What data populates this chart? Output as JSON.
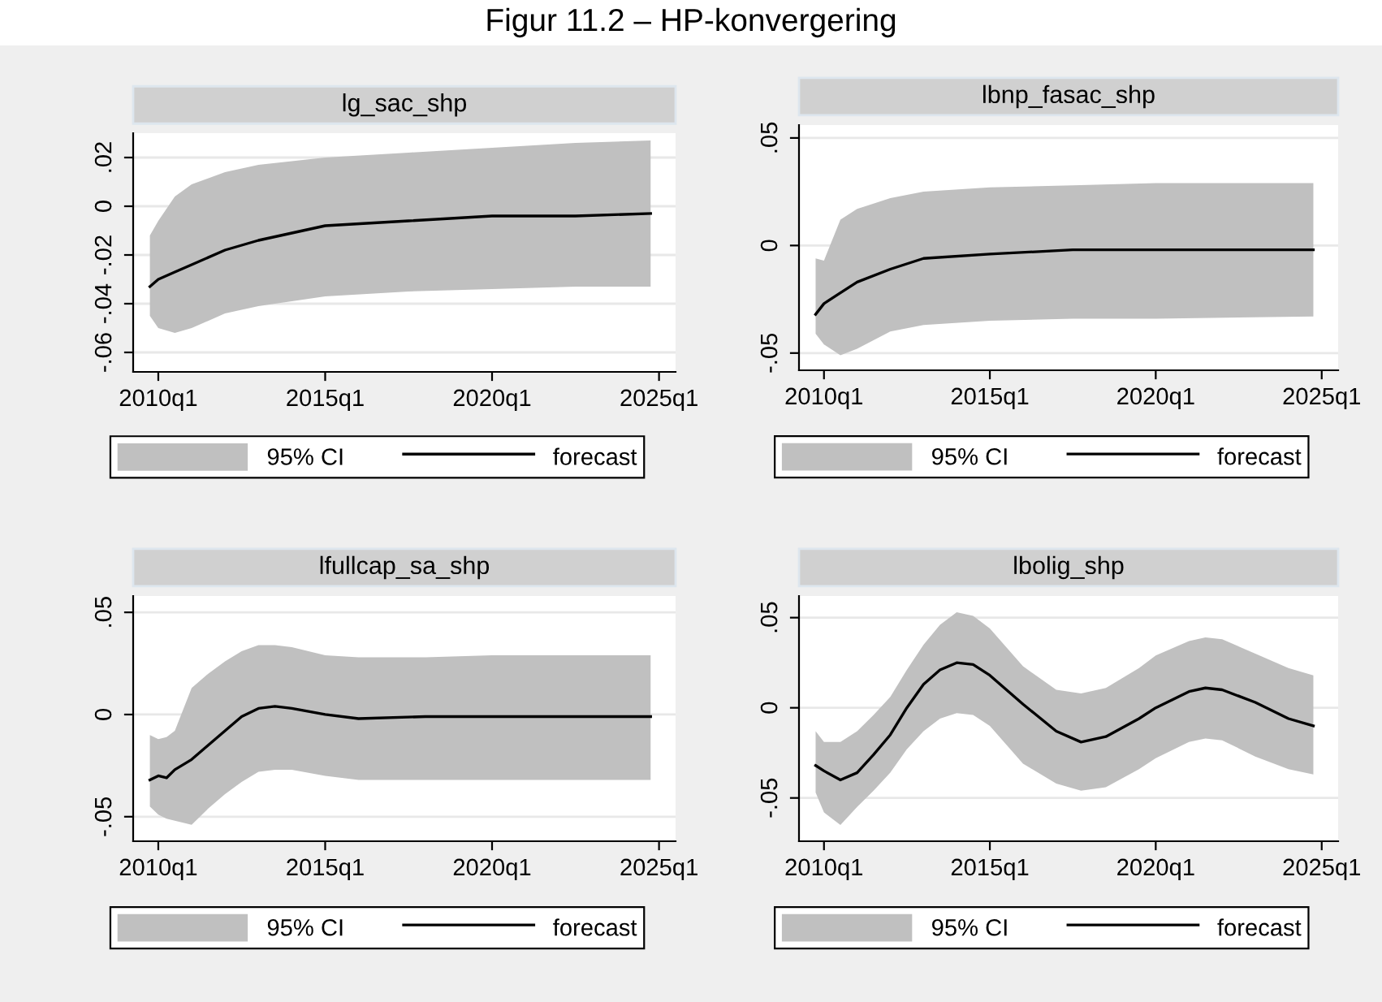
{
  "chart_data": [
    {
      "type": "line",
      "title": "lg_sac_shp",
      "annotations": [
        "Figur 11.2 – HP-konvergering",
        "95% CI"
      ],
      "grid": "y",
      "legend": "bottom",
      "x": [
        "2009-10",
        "2010-01",
        "2010-07",
        "2011-01",
        "2012-01",
        "2013-01",
        "2015-01",
        "2017-07",
        "2020-01",
        "2022-07",
        "2024-10"
      ],
      "series": [
        {
          "name": "forecast",
          "color": "#000000",
          "values": [
            -0.033,
            -0.03,
            -0.027,
            -0.024,
            -0.018,
            -0.014,
            -0.008,
            -0.006,
            -0.004,
            -0.004,
            -0.003
          ],
          "lower": [
            -0.045,
            -0.05,
            -0.052,
            -0.05,
            -0.044,
            -0.041,
            -0.037,
            -0.035,
            -0.034,
            -0.033,
            -0.033
          ],
          "upper": [
            -0.012,
            -0.006,
            0.004,
            0.009,
            0.014,
            0.017,
            0.02,
            0.022,
            0.024,
            0.026,
            0.027
          ]
        }
      ],
      "xlim": [
        "2009-04",
        "2025-07"
      ],
      "xticks": [
        {
          "value": "2010-01",
          "label": "2010q1"
        },
        {
          "value": "2015-01",
          "label": "2015q1"
        },
        {
          "value": "2020-01",
          "label": "2020q1"
        },
        {
          "value": "2025-01",
          "label": "2025q1"
        }
      ],
      "ylim": [
        -0.068,
        0.03
      ],
      "yticks": [
        {
          "value": -0.06,
          "label": "-.06"
        },
        {
          "value": -0.04,
          "label": "-.04"
        },
        {
          "value": -0.02,
          "label": "-.02"
        },
        {
          "value": 0,
          "label": "0"
        },
        {
          "value": 0.02,
          "label": ".02"
        }
      ]
    },
    {
      "type": "line",
      "title": "lbnp_fasac_shp",
      "annotations": [
        "95% CI"
      ],
      "grid": "y",
      "legend": "bottom",
      "x": [
        "2009-10",
        "2010-01",
        "2010-07",
        "2011-01",
        "2012-01",
        "2013-01",
        "2015-01",
        "2017-07",
        "2020-01",
        "2024-10"
      ],
      "series": [
        {
          "name": "forecast",
          "color": "#000000",
          "values": [
            -0.032,
            -0.027,
            -0.022,
            -0.017,
            -0.011,
            -0.006,
            -0.004,
            -0.002,
            -0.002,
            -0.002
          ],
          "lower": [
            -0.041,
            -0.046,
            -0.051,
            -0.048,
            -0.04,
            -0.037,
            -0.035,
            -0.034,
            -0.034,
            -0.033
          ],
          "upper": [
            -0.006,
            -0.007,
            0.012,
            0.017,
            0.022,
            0.025,
            0.027,
            0.028,
            0.029,
            0.029
          ]
        }
      ],
      "xlim": [
        "2009-04",
        "2025-07"
      ],
      "xticks": [
        {
          "value": "2010-01",
          "label": "2010q1"
        },
        {
          "value": "2015-01",
          "label": "2015q1"
        },
        {
          "value": "2020-01",
          "label": "2020q1"
        },
        {
          "value": "2025-01",
          "label": "2025q1"
        }
      ],
      "ylim": [
        -0.058,
        0.056
      ],
      "yticks": [
        {
          "value": -0.05,
          "label": "-.05"
        },
        {
          "value": 0,
          "label": "0"
        },
        {
          "value": 0.05,
          "label": ".05"
        }
      ]
    },
    {
      "type": "line",
      "title": "lfullcap_sa_shp",
      "annotations": [
        "95% CI"
      ],
      "grid": "y",
      "legend": "bottom",
      "x": [
        "2009-10",
        "2010-01",
        "2010-04",
        "2010-07",
        "2011-01",
        "2011-07",
        "2012-01",
        "2012-07",
        "2013-01",
        "2013-07",
        "2014-01",
        "2015-01",
        "2016-01",
        "2018-01",
        "2020-01",
        "2022-01",
        "2024-10"
      ],
      "series": [
        {
          "name": "forecast",
          "color": "#000000",
          "values": [
            -0.032,
            -0.03,
            -0.031,
            -0.027,
            -0.022,
            -0.015,
            -0.008,
            -0.001,
            0.003,
            0.004,
            0.003,
            0,
            -0.002,
            -0.001,
            -0.001,
            -0.001,
            -0.001
          ],
          "lower": [
            -0.045,
            -0.049,
            -0.051,
            -0.052,
            -0.054,
            -0.046,
            -0.039,
            -0.033,
            -0.028,
            -0.027,
            -0.027,
            -0.03,
            -0.032,
            -0.032,
            -0.032,
            -0.032,
            -0.032
          ],
          "upper": [
            -0.01,
            -0.012,
            -0.011,
            -0.008,
            0.013,
            0.02,
            0.026,
            0.031,
            0.034,
            0.034,
            0.033,
            0.029,
            0.028,
            0.028,
            0.029,
            0.029,
            0.029
          ]
        }
      ],
      "xlim": [
        "2009-04",
        "2025-07"
      ],
      "xticks": [
        {
          "value": "2010-01",
          "label": "2010q1"
        },
        {
          "value": "2015-01",
          "label": "2015q1"
        },
        {
          "value": "2020-01",
          "label": "2020q1"
        },
        {
          "value": "2025-01",
          "label": "2025q1"
        }
      ],
      "ylim": [
        -0.062,
        0.058
      ],
      "yticks": [
        {
          "value": -0.05,
          "label": "-.05"
        },
        {
          "value": 0,
          "label": "0"
        },
        {
          "value": 0.05,
          "label": ".05"
        }
      ]
    },
    {
      "type": "line",
      "title": "lbolig_shp",
      "annotations": [
        "95% CI"
      ],
      "grid": "y",
      "legend": "bottom",
      "x": [
        "2009-10",
        "2010-01",
        "2010-07",
        "2011-01",
        "2011-07",
        "2012-01",
        "2012-07",
        "2013-01",
        "2013-07",
        "2014-01",
        "2014-07",
        "2015-01",
        "2016-01",
        "2017-01",
        "2017-10",
        "2018-07",
        "2019-07",
        "2020-01",
        "2021-01",
        "2021-07",
        "2022-01",
        "2023-01",
        "2024-01",
        "2024-10"
      ],
      "series": [
        {
          "name": "forecast",
          "color": "#000000",
          "values": [
            -0.032,
            -0.035,
            -0.04,
            -0.036,
            -0.026,
            -0.015,
            0,
            0.013,
            0.021,
            0.025,
            0.024,
            0.018,
            0.002,
            -0.013,
            -0.019,
            -0.016,
            -0.006,
            0,
            0.009,
            0.011,
            0.01,
            0.003,
            -0.006,
            -0.01
          ],
          "lower": [
            -0.047,
            -0.058,
            -0.065,
            -0.055,
            -0.046,
            -0.036,
            -0.023,
            -0.013,
            -0.006,
            -0.003,
            -0.004,
            -0.01,
            -0.031,
            -0.042,
            -0.046,
            -0.044,
            -0.034,
            -0.028,
            -0.019,
            -0.017,
            -0.018,
            -0.027,
            -0.034,
            -0.037
          ],
          "upper": [
            -0.013,
            -0.019,
            -0.019,
            -0.013,
            -0.004,
            0.006,
            0.021,
            0.035,
            0.046,
            0.053,
            0.051,
            0.044,
            0.023,
            0.01,
            0.008,
            0.011,
            0.022,
            0.029,
            0.037,
            0.039,
            0.038,
            0.03,
            0.022,
            0.018
          ]
        }
      ],
      "xlim": [
        "2009-04",
        "2025-07"
      ],
      "xticks": [
        {
          "value": "2010-01",
          "label": "2010q1"
        },
        {
          "value": "2015-01",
          "label": "2015q1"
        },
        {
          "value": "2020-01",
          "label": "2020q1"
        },
        {
          "value": "2025-01",
          "label": "2025q1"
        }
      ],
      "ylim": [
        -0.074,
        0.062
      ],
      "yticks": [
        {
          "value": -0.05,
          "label": "-.05"
        },
        {
          "value": 0,
          "label": "0"
        },
        {
          "value": 0.05,
          "label": ".05"
        }
      ]
    }
  ]
}
